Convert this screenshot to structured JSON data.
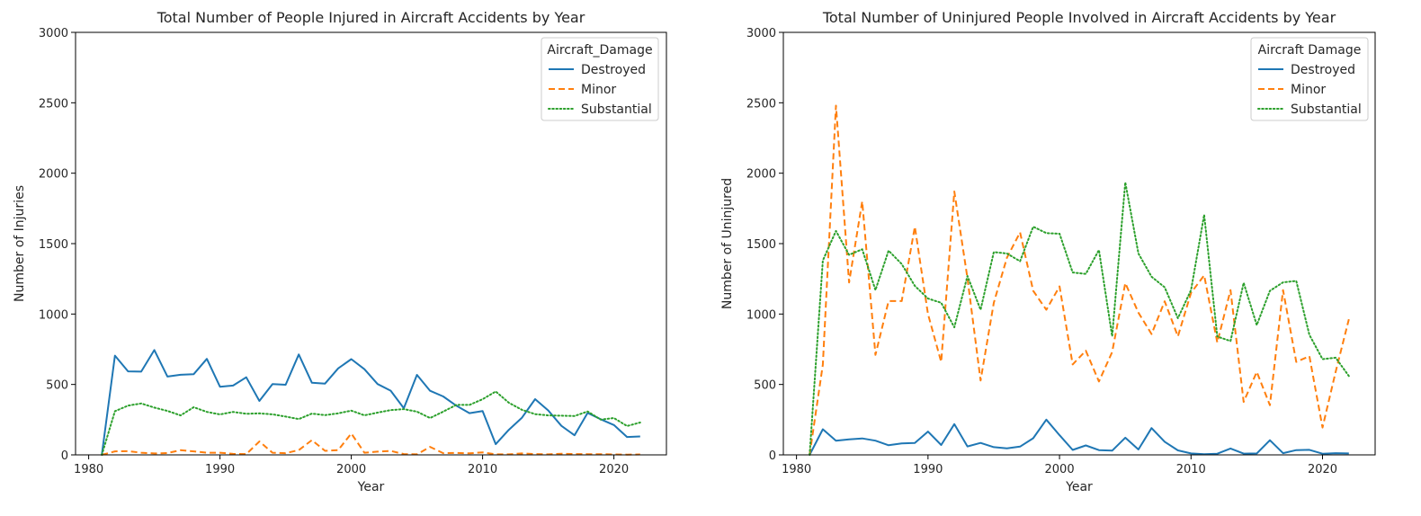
{
  "chart_data": [
    {
      "type": "line",
      "title": "Total Number of People Injured in Aircraft Accidents by Year",
      "xlabel": "Year",
      "ylabel": "Number of Injuries",
      "xlim": [
        1979,
        2024
      ],
      "ylim": [
        0,
        3000
      ],
      "xticks": [
        1980,
        1990,
        2000,
        2010,
        2020
      ],
      "yticks": [
        0,
        500,
        1000,
        1500,
        2000,
        2500,
        3000
      ],
      "grid": false,
      "legend": {
        "title": "Aircraft_Damage",
        "placement": "top-right"
      },
      "x": [
        1981,
        1982,
        1983,
        1984,
        1985,
        1986,
        1987,
        1988,
        1989,
        1990,
        1991,
        1992,
        1993,
        1994,
        1995,
        1996,
        1997,
        1998,
        1999,
        2000,
        2001,
        2002,
        2003,
        2004,
        2005,
        2006,
        2007,
        2008,
        2009,
        2010,
        2011,
        2012,
        2013,
        2014,
        2015,
        2016,
        2017,
        2018,
        2019,
        2020,
        2021,
        2022
      ],
      "series": [
        {
          "name": "Destroyed",
          "color": "#1f77b4",
          "style": "solid",
          "values": [
            0,
            705,
            593,
            591,
            744,
            556,
            569,
            573,
            682,
            484,
            492,
            551,
            383,
            503,
            498,
            713,
            512,
            506,
            614,
            680,
            608,
            503,
            456,
            331,
            568,
            455,
            415,
            349,
            296,
            311,
            76,
            178,
            264,
            396,
            315,
            206,
            139,
            298,
            253,
            212,
            127,
            131
          ]
        },
        {
          "name": "Minor",
          "color": "#ff7f0e",
          "style": "dashed",
          "values": [
            0,
            25,
            27,
            15,
            10,
            13,
            33,
            25,
            15,
            15,
            7,
            5,
            95,
            15,
            12,
            34,
            105,
            29,
            34,
            152,
            15,
            23,
            28,
            6,
            4,
            57,
            12,
            14,
            11,
            18,
            4,
            4,
            10,
            6,
            4,
            8,
            6,
            5,
            5,
            3,
            2,
            3
          ]
        },
        {
          "name": "Substantial",
          "color": "#2ca02c",
          "style": "dotted",
          "values": [
            0,
            310,
            350,
            365,
            336,
            312,
            280,
            338,
            305,
            287,
            305,
            292,
            295,
            288,
            272,
            254,
            293,
            282,
            295,
            314,
            281,
            300,
            318,
            325,
            307,
            262,
            307,
            355,
            355,
            395,
            450,
            370,
            320,
            289,
            280,
            278,
            276,
            308,
            250,
            262,
            205,
            230
          ]
        }
      ]
    },
    {
      "type": "line",
      "title": "Total Number of Uninjured People Involved in Aircraft Accidents by Year",
      "xlabel": "Year",
      "ylabel": "Number of Uninjured",
      "xlim": [
        1979,
        2024
      ],
      "ylim": [
        0,
        3000
      ],
      "xticks": [
        1980,
        1990,
        2000,
        2010,
        2020
      ],
      "yticks": [
        0,
        500,
        1000,
        1500,
        2000,
        2500,
        3000
      ],
      "grid": false,
      "legend": {
        "title": "Aircraft Damage",
        "placement": "top-right"
      },
      "x": [
        1981,
        1982,
        1983,
        1984,
        1985,
        1986,
        1987,
        1988,
        1989,
        1990,
        1991,
        1992,
        1993,
        1994,
        1995,
        1996,
        1997,
        1998,
        1999,
        2000,
        2001,
        2002,
        2003,
        2004,
        2005,
        2006,
        2007,
        2008,
        2009,
        2010,
        2011,
        2012,
        2013,
        2014,
        2015,
        2016,
        2017,
        2018,
        2019,
        2020,
        2021,
        2022
      ],
      "series": [
        {
          "name": "Destroyed",
          "color": "#1f77b4",
          "style": "solid",
          "values": [
            0,
            182,
            100,
            110,
            117,
            101,
            68,
            82,
            84,
            165,
            70,
            218,
            60,
            85,
            55,
            46,
            59,
            118,
            250,
            140,
            35,
            67,
            34,
            30,
            122,
            38,
            190,
            93,
            32,
            10,
            5,
            8,
            45,
            9,
            10,
            104,
            12,
            34,
            36,
            8,
            12,
            10
          ]
        },
        {
          "name": "Minor",
          "color": "#ff7f0e",
          "style": "dashed",
          "values": [
            0,
            640,
            2480,
            1224,
            1800,
            710,
            1092,
            1092,
            1620,
            1000,
            660,
            1870,
            1255,
            528,
            1080,
            1400,
            1580,
            1165,
            1030,
            1196,
            642,
            740,
            521,
            730,
            1220,
            1010,
            858,
            1090,
            841,
            1150,
            1275,
            798,
            1170,
            376,
            589,
            353,
            1170,
            660,
            701,
            194,
            590,
            963
          ]
        },
        {
          "name": "Substantial",
          "color": "#2ca02c",
          "style": "dotted",
          "values": [
            0,
            1380,
            1590,
            1420,
            1460,
            1170,
            1450,
            1355,
            1200,
            1110,
            1080,
            906,
            1270,
            1030,
            1440,
            1430,
            1375,
            1620,
            1575,
            1570,
            1295,
            1285,
            1455,
            842,
            1935,
            1430,
            1265,
            1190,
            970,
            1170,
            1705,
            840,
            808,
            1222,
            922,
            1165,
            1225,
            1235,
            852,
            680,
            690,
            560
          ]
        }
      ]
    }
  ]
}
